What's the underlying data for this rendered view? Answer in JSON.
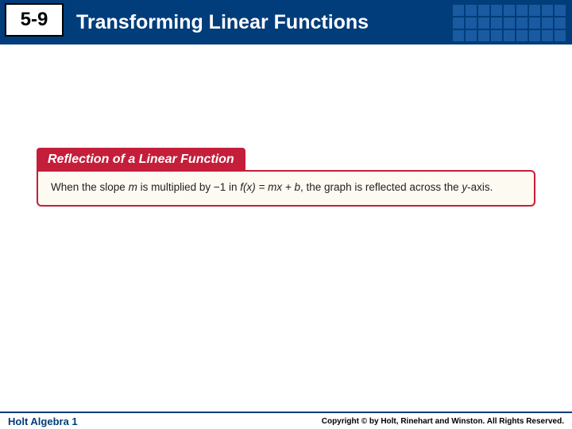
{
  "header": {
    "section_number": "5-9",
    "title": "Transforming Linear Functions",
    "bar_color": "#003d7a",
    "grid_color": "#1a5aa0",
    "title_color": "#ffffff",
    "badge_bg": "#ffffff",
    "badge_border": "#000000"
  },
  "callout": {
    "heading": "Reflection of a Linear Function",
    "heading_bg": "#c41e3a",
    "heading_color": "#ffffff",
    "body_bg": "#fdfaf2",
    "body_border": "#c41e3a",
    "body_text_part1": "When the slope ",
    "body_text_var_m": "m",
    "body_text_part2": " is multiplied by −1 in ",
    "body_text_fn": "f(x) = mx + b",
    "body_text_part3": ", the graph is reflected across the ",
    "body_text_var_y": "y",
    "body_text_part4": "-axis."
  },
  "footer": {
    "left": "Holt Algebra 1",
    "right": "Copyright © by Holt, Rinehart and Winston. All Rights Reserved.",
    "border_color": "#003d7a"
  }
}
